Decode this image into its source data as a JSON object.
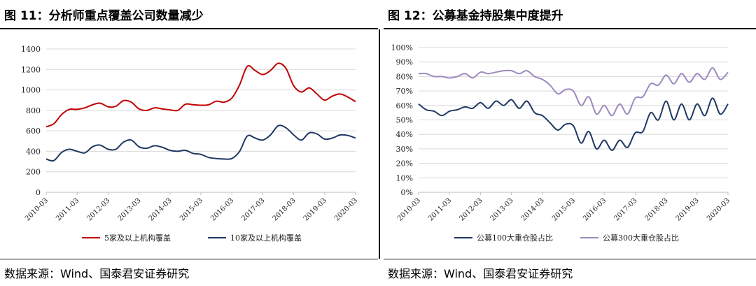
{
  "charts": [
    {
      "title": "图 11：分析师重点覆盖公司数量减少",
      "source": "数据来源：Wind、国泰君安证券研究"
    },
    {
      "title": "图 12：公募基金持股集中度提升",
      "source": "数据来源：Wind、国泰君安证券研究"
    }
  ],
  "chart_data": [
    {
      "type": "line",
      "title": "",
      "xlabel": "",
      "ylabel": "",
      "x_range": [
        "2010-03",
        "2020-03"
      ],
      "ylim": [
        0,
        1400
      ],
      "y_ticks": [
        0,
        200,
        400,
        600,
        800,
        1000,
        1200,
        1400
      ],
      "y_tick_labels": [
        "0",
        "200",
        "400",
        "600",
        "800",
        "1000",
        "1200",
        "1400"
      ],
      "x_tick_labels": [
        "2010-03",
        "2011-03",
        "2012-03",
        "2013-03",
        "2014-03",
        "2015-03",
        "2016-03",
        "2017-03",
        "2018-03",
        "2019-03",
        "2020-03"
      ],
      "grid": true,
      "legend_position": "bottom",
      "series": [
        {
          "name": "5家及以上机构覆盖",
          "color": "#c00000",
          "x": [
            "2010-03",
            "2010-06",
            "2010-09",
            "2010-12",
            "2011-03",
            "2011-06",
            "2011-09",
            "2011-12",
            "2012-03",
            "2012-06",
            "2012-09",
            "2012-12",
            "2013-03",
            "2013-06",
            "2013-09",
            "2013-12",
            "2014-03",
            "2014-06",
            "2014-09",
            "2014-12",
            "2015-03",
            "2015-06",
            "2015-09",
            "2015-12",
            "2016-03",
            "2016-06",
            "2016-09",
            "2016-12",
            "2017-03",
            "2017-06",
            "2017-09",
            "2017-12",
            "2018-03",
            "2018-06",
            "2018-09",
            "2018-12",
            "2019-03",
            "2019-06",
            "2019-09",
            "2019-12",
            "2020-03"
          ],
          "values": [
            640,
            670,
            760,
            810,
            810,
            825,
            855,
            870,
            835,
            840,
            895,
            880,
            815,
            800,
            825,
            815,
            805,
            800,
            860,
            855,
            850,
            855,
            890,
            880,
            920,
            1050,
            1230,
            1190,
            1150,
            1190,
            1260,
            1210,
            1040,
            980,
            1020,
            960,
            900,
            940,
            960,
            930,
            885
          ]
        },
        {
          "name": "10家及以上机构覆盖",
          "color": "#1f3864",
          "x": [
            "2010-03",
            "2010-06",
            "2010-09",
            "2010-12",
            "2011-03",
            "2011-06",
            "2011-09",
            "2011-12",
            "2012-03",
            "2012-06",
            "2012-09",
            "2012-12",
            "2013-03",
            "2013-06",
            "2013-09",
            "2013-12",
            "2014-03",
            "2014-06",
            "2014-09",
            "2014-12",
            "2015-03",
            "2015-06",
            "2015-09",
            "2015-12",
            "2016-03",
            "2016-06",
            "2016-09",
            "2016-12",
            "2017-03",
            "2017-06",
            "2017-09",
            "2017-12",
            "2018-03",
            "2018-06",
            "2018-09",
            "2018-12",
            "2019-03",
            "2019-06",
            "2019-09",
            "2019-12",
            "2020-03"
          ],
          "values": [
            325,
            310,
            390,
            420,
            400,
            385,
            445,
            460,
            420,
            420,
            490,
            510,
            445,
            430,
            455,
            440,
            410,
            400,
            410,
            380,
            370,
            340,
            330,
            325,
            330,
            400,
            550,
            530,
            510,
            560,
            650,
            630,
            560,
            510,
            580,
            570,
            520,
            530,
            560,
            555,
            530
          ]
        }
      ]
    },
    {
      "type": "line",
      "title": "",
      "xlabel": "",
      "ylabel": "",
      "x_range": [
        "2010-03",
        "2020-03"
      ],
      "ylim": [
        0,
        100
      ],
      "y_ticks": [
        0,
        10,
        20,
        30,
        40,
        50,
        60,
        70,
        80,
        90,
        100
      ],
      "y_tick_labels": [
        "0%",
        "10%",
        "20%",
        "30%",
        "40%",
        "50%",
        "60%",
        "70%",
        "80%",
        "90%",
        "100%"
      ],
      "x_tick_labels": [
        "2010-03",
        "2011-03",
        "2012-03",
        "2013-03",
        "2014-03",
        "2015-03",
        "2016-03",
        "2017-03",
        "2018-03",
        "2019-03",
        "2020-03"
      ],
      "grid": true,
      "legend_position": "bottom",
      "series": [
        {
          "name": "公募100大重仓股占比",
          "color": "#1f3864",
          "x": [
            "2010-03",
            "2010-06",
            "2010-09",
            "2010-12",
            "2011-03",
            "2011-06",
            "2011-09",
            "2011-12",
            "2012-03",
            "2012-06",
            "2012-09",
            "2012-12",
            "2013-03",
            "2013-06",
            "2013-09",
            "2013-12",
            "2014-03",
            "2014-06",
            "2014-09",
            "2014-12",
            "2015-03",
            "2015-06",
            "2015-09",
            "2015-12",
            "2016-03",
            "2016-06",
            "2016-09",
            "2016-12",
            "2017-03",
            "2017-06",
            "2017-09",
            "2017-12",
            "2018-03",
            "2018-06",
            "2018-09",
            "2018-12",
            "2019-03",
            "2019-06",
            "2019-09",
            "2019-12",
            "2020-03"
          ],
          "values": [
            61,
            57,
            56,
            53,
            56,
            57,
            59,
            58,
            62,
            58,
            63,
            60,
            64,
            58,
            63,
            55,
            53,
            48,
            43,
            47,
            46,
            34,
            42,
            30,
            36,
            29,
            36,
            31,
            41,
            42,
            55,
            50,
            63,
            50,
            61,
            50,
            61,
            53,
            65,
            54,
            61
          ]
        },
        {
          "name": "公募300大重仓股占比",
          "color": "#9b8abf",
          "x": [
            "2010-03",
            "2010-06",
            "2010-09",
            "2010-12",
            "2011-03",
            "2011-06",
            "2011-09",
            "2011-12",
            "2012-03",
            "2012-06",
            "2012-09",
            "2012-12",
            "2013-03",
            "2013-06",
            "2013-09",
            "2013-12",
            "2014-03",
            "2014-06",
            "2014-09",
            "2014-12",
            "2015-03",
            "2015-06",
            "2015-09",
            "2015-12",
            "2016-03",
            "2016-06",
            "2016-09",
            "2016-12",
            "2017-03",
            "2017-06",
            "2017-09",
            "2017-12",
            "2018-03",
            "2018-06",
            "2018-09",
            "2018-12",
            "2019-03",
            "2019-06",
            "2019-09",
            "2019-12",
            "2020-03"
          ],
          "values": [
            82,
            82,
            80,
            80,
            79,
            80,
            82,
            79,
            83,
            82,
            83,
            84,
            84,
            82,
            84,
            80,
            78,
            74,
            68,
            71,
            70,
            60,
            66,
            54,
            60,
            53,
            61,
            54,
            65,
            66,
            75,
            74,
            81,
            75,
            82,
            76,
            82,
            78,
            86,
            78,
            83
          ]
        }
      ]
    }
  ]
}
